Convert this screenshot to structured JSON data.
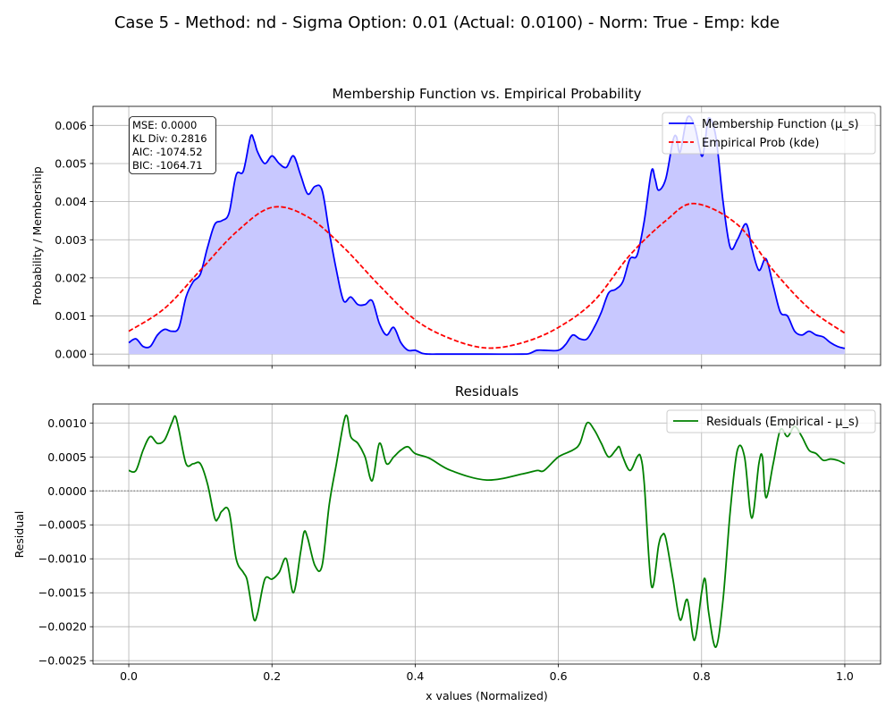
{
  "figure": {
    "suptitle": "Case 5 - Method: nd - Sigma Option: 0.01 (Actual: 0.0100) - Norm: True - Emp: kde"
  },
  "colors": {
    "membership": "#0000ff",
    "membership_fill": "#c8c8ff",
    "empirical": "#ff0000",
    "residual": "#008000",
    "zero_line": "#808080",
    "grid": "#b0b0b0"
  },
  "chart_data": [
    {
      "type": "line",
      "title": "Membership Function vs. Empirical Probability",
      "xlabel": "",
      "ylabel": "Probability / Membership",
      "xlim": [
        -0.05,
        1.05
      ],
      "ylim": [
        -0.0003,
        0.0065
      ],
      "grid": true,
      "legend_placement": "upper right",
      "x_ticks": [
        0.0,
        0.2,
        0.4,
        0.6,
        0.8,
        1.0
      ],
      "y_ticks": [
        0.0,
        0.001,
        0.002,
        0.003,
        0.004,
        0.005,
        0.006
      ],
      "y_tick_labels": [
        "0.000",
        "0.001",
        "0.002",
        "0.003",
        "0.004",
        "0.005",
        "0.006"
      ],
      "stats_box": [
        "MSE: 0.0000",
        "KL Div: 0.2816",
        "AIC: -1074.52",
        "BIC: -1064.71"
      ],
      "series": [
        {
          "name": "Membership Function (μ_s)",
          "style": "solid, filled below",
          "x": [
            0.0,
            0.01,
            0.02,
            0.03,
            0.04,
            0.05,
            0.06,
            0.07,
            0.08,
            0.09,
            0.1,
            0.11,
            0.12,
            0.13,
            0.14,
            0.15,
            0.16,
            0.17,
            0.175,
            0.18,
            0.19,
            0.2,
            0.21,
            0.22,
            0.23,
            0.24,
            0.25,
            0.26,
            0.27,
            0.28,
            0.29,
            0.3,
            0.31,
            0.32,
            0.33,
            0.34,
            0.35,
            0.36,
            0.37,
            0.38,
            0.39,
            0.4,
            0.41,
            0.42,
            0.43,
            0.45,
            0.5,
            0.55,
            0.56,
            0.57,
            0.58,
            0.6,
            0.61,
            0.62,
            0.63,
            0.64,
            0.65,
            0.66,
            0.67,
            0.68,
            0.69,
            0.7,
            0.71,
            0.72,
            0.73,
            0.735,
            0.74,
            0.75,
            0.76,
            0.765,
            0.77,
            0.78,
            0.79,
            0.8,
            0.805,
            0.81,
            0.82,
            0.83,
            0.84,
            0.85,
            0.86,
            0.865,
            0.87,
            0.88,
            0.89,
            0.9,
            0.91,
            0.92,
            0.93,
            0.94,
            0.95,
            0.96,
            0.97,
            0.98,
            0.99,
            1.0
          ],
          "y": [
            0.0003,
            0.0004,
            0.0002,
            0.0002,
            0.0005,
            0.00065,
            0.0006,
            0.0007,
            0.0015,
            0.0019,
            0.0021,
            0.0028,
            0.0034,
            0.0035,
            0.0037,
            0.0047,
            0.0048,
            0.0057,
            0.0056,
            0.0053,
            0.005,
            0.0052,
            0.005,
            0.0049,
            0.0052,
            0.0047,
            0.0042,
            0.0044,
            0.0043,
            0.0032,
            0.0022,
            0.0014,
            0.0015,
            0.0013,
            0.0013,
            0.0014,
            0.0008,
            0.0005,
            0.0007,
            0.0003,
            0.0001,
            0.0001,
            2e-05,
            0.0,
            0.0,
            0.0,
            0.0,
            0.0,
            2e-05,
            0.0001,
            0.0001,
            0.0001,
            0.00025,
            0.0005,
            0.0004,
            0.0004,
            0.0007,
            0.0011,
            0.0016,
            0.0017,
            0.0019,
            0.0025,
            0.0026,
            0.0035,
            0.0048,
            0.0046,
            0.0043,
            0.0046,
            0.0056,
            0.0057,
            0.0053,
            0.0062,
            0.006,
            0.0052,
            0.0056,
            0.0062,
            0.0057,
            0.004,
            0.0028,
            0.003,
            0.0034,
            0.0033,
            0.0028,
            0.0022,
            0.0025,
            0.0018,
            0.0011,
            0.001,
            0.0006,
            0.0005,
            0.0006,
            0.0005,
            0.00045,
            0.0003,
            0.0002,
            0.00015
          ]
        },
        {
          "name": "Empirical Prob (kde)",
          "style": "dashed",
          "x": [
            0.0,
            0.05,
            0.1,
            0.15,
            0.2,
            0.25,
            0.3,
            0.35,
            0.4,
            0.45,
            0.5,
            0.55,
            0.6,
            0.65,
            0.7,
            0.75,
            0.79,
            0.85,
            0.9,
            0.95,
            1.0
          ],
          "y": [
            0.0006,
            0.0012,
            0.0022,
            0.0032,
            0.00385,
            0.0036,
            0.0028,
            0.0018,
            0.0009,
            0.0004,
            0.00016,
            0.0003,
            0.0007,
            0.0014,
            0.0026,
            0.0035,
            0.00395,
            0.0034,
            0.0022,
            0.0012,
            0.00055
          ]
        }
      ]
    },
    {
      "type": "line",
      "title": "Residuals",
      "xlabel": "x values (Normalized)",
      "ylabel": "Residual",
      "xlim": [
        -0.05,
        1.05
      ],
      "ylim": [
        -0.00255,
        0.00128
      ],
      "grid": true,
      "legend_placement": "upper right",
      "zero_line": "dotted gray at 0",
      "x_ticks": [
        0.0,
        0.2,
        0.4,
        0.6,
        0.8,
        1.0
      ],
      "x_tick_labels": [
        "0.0",
        "0.2",
        "0.4",
        "0.6",
        "0.8",
        "1.0"
      ],
      "y_ticks": [
        -0.0025,
        -0.002,
        -0.0015,
        -0.001,
        -0.0005,
        0.0,
        0.0005,
        0.001
      ],
      "y_tick_labels": [
        "−0.0025",
        "−0.0020",
        "−0.0015",
        "−0.0010",
        "−0.0005",
        "0.0000",
        "0.0005",
        "0.0010"
      ],
      "series": [
        {
          "name": "Residuals (Empirical - μ_s)",
          "style": "solid",
          "x": [
            0.0,
            0.01,
            0.02,
            0.03,
            0.04,
            0.05,
            0.06,
            0.065,
            0.07,
            0.08,
            0.09,
            0.1,
            0.11,
            0.12,
            0.125,
            0.13,
            0.14,
            0.15,
            0.16,
            0.165,
            0.17,
            0.175,
            0.18,
            0.19,
            0.2,
            0.21,
            0.22,
            0.23,
            0.24,
            0.245,
            0.25,
            0.26,
            0.27,
            0.28,
            0.29,
            0.3,
            0.305,
            0.31,
            0.32,
            0.33,
            0.34,
            0.35,
            0.36,
            0.37,
            0.38,
            0.39,
            0.4,
            0.42,
            0.45,
            0.5,
            0.55,
            0.57,
            0.58,
            0.6,
            0.62,
            0.63,
            0.64,
            0.65,
            0.66,
            0.67,
            0.68,
            0.685,
            0.69,
            0.7,
            0.71,
            0.715,
            0.72,
            0.73,
            0.74,
            0.745,
            0.75,
            0.76,
            0.77,
            0.78,
            0.79,
            0.8,
            0.805,
            0.81,
            0.82,
            0.83,
            0.84,
            0.85,
            0.86,
            0.87,
            0.88,
            0.885,
            0.89,
            0.9,
            0.91,
            0.92,
            0.93,
            0.94,
            0.95,
            0.96,
            0.97,
            0.98,
            0.99,
            1.0
          ],
          "y": [
            0.0003,
            0.0003,
            0.0006,
            0.0008,
            0.0007,
            0.00075,
            0.001,
            0.0011,
            0.0009,
            0.0004,
            0.0004,
            0.0004,
            0.0001,
            -0.0004,
            -0.0004,
            -0.0003,
            -0.0003,
            -0.001,
            -0.0012,
            -0.0013,
            -0.0016,
            -0.0019,
            -0.0018,
            -0.0013,
            -0.0013,
            -0.0012,
            -0.001,
            -0.0015,
            -0.0009,
            -0.0006,
            -0.0007,
            -0.0011,
            -0.0011,
            -0.0002,
            0.0004,
            0.001,
            0.0011,
            0.0008,
            0.0007,
            0.0005,
            0.00015,
            0.0007,
            0.0004,
            0.0005,
            0.0006,
            0.00065,
            0.00055,
            0.00048,
            0.0003,
            0.00016,
            0.00025,
            0.0003,
            0.0003,
            0.0005,
            0.0006,
            0.0007,
            0.001,
            0.0009,
            0.0007,
            0.0005,
            0.0006,
            0.00065,
            0.0005,
            0.0003,
            0.0005,
            0.0005,
            0.0001,
            -0.0014,
            -0.0008,
            -0.00065,
            -0.0007,
            -0.0013,
            -0.0019,
            -0.0016,
            -0.0022,
            -0.0015,
            -0.0013,
            -0.0018,
            -0.0023,
            -0.0016,
            -0.0003,
            0.0006,
            0.0005,
            -0.0004,
            0.0004,
            0.0005,
            -0.0001,
            0.0004,
            0.0009,
            0.0008,
            0.00095,
            0.0008,
            0.0006,
            0.00055,
            0.00045,
            0.00047,
            0.00045,
            0.0004
          ]
        }
      ]
    }
  ]
}
